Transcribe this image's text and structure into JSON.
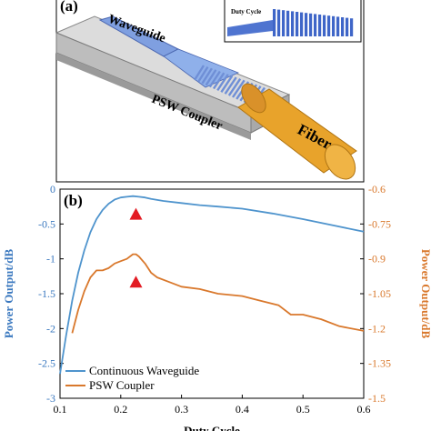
{
  "panel_a": {
    "label": "(a)",
    "waveguide_label": "Waveguide",
    "coupler_label": "PSW Coupler",
    "fiber_label": "Fiber",
    "inset_label": "Duty Cycle",
    "colors": {
      "waveguide": "#6f8fd6",
      "fiber": "#e8a32b",
      "substrate": "#d4d4d4"
    }
  },
  "panel_b": {
    "label": "(b)",
    "chart_data": {
      "type": "line",
      "xlabel": "Duty Cycle",
      "ylabel_left": "Power Output/dB",
      "ylabel_right": "Power Output/dB",
      "xlim": [
        0.1,
        0.6
      ],
      "ylim_left": [
        -3,
        0
      ],
      "ylim_right": [
        -1.5,
        -0.6
      ],
      "x_ticks": [
        "0.1",
        "0.2",
        "0.3",
        "0.4",
        "0.5",
        "0.6"
      ],
      "y_ticks_left": [
        "0",
        "-0.5",
        "-1",
        "-1.5",
        "-2",
        "-2.5",
        "-3"
      ],
      "y_ticks_right": [
        "-0.6",
        "-0.75",
        "-0.9",
        "-1.05",
        "-1.2",
        "-1.35",
        "-1.5"
      ],
      "legend_position": "bottom-left",
      "grid": false,
      "series": [
        {
          "name": "Continuous Waveguide",
          "axis": "left",
          "color": "#4f94cd",
          "x": [
            0.1,
            0.11,
            0.12,
            0.13,
            0.14,
            0.15,
            0.16,
            0.17,
            0.18,
            0.19,
            0.2,
            0.21,
            0.22,
            0.23,
            0.24,
            0.25,
            0.27,
            0.3,
            0.33,
            0.36,
            0.4,
            0.45,
            0.5,
            0.55,
            0.6
          ],
          "y": [
            -2.65,
            -2.1,
            -1.6,
            -1.2,
            -0.88,
            -0.62,
            -0.43,
            -0.3,
            -0.21,
            -0.15,
            -0.12,
            -0.11,
            -0.1,
            -0.11,
            -0.12,
            -0.14,
            -0.17,
            -0.2,
            -0.23,
            -0.25,
            -0.28,
            -0.35,
            -0.43,
            -0.52,
            -0.61
          ]
        },
        {
          "name": "PSW Coupler",
          "axis": "right",
          "color": "#d9782c",
          "x": [
            0.12,
            0.13,
            0.14,
            0.15,
            0.16,
            0.17,
            0.18,
            0.19,
            0.2,
            0.21,
            0.22,
            0.225,
            0.23,
            0.24,
            0.25,
            0.26,
            0.28,
            0.3,
            0.33,
            0.36,
            0.4,
            0.43,
            0.46,
            0.48,
            0.5,
            0.53,
            0.56,
            0.6
          ],
          "y": [
            -1.22,
            -1.12,
            -1.04,
            -0.98,
            -0.95,
            -0.95,
            -0.94,
            -0.92,
            -0.91,
            -0.9,
            -0.88,
            -0.88,
            -0.89,
            -0.92,
            -0.96,
            -0.98,
            -1.0,
            -1.02,
            -1.03,
            -1.05,
            -1.06,
            -1.08,
            -1.1,
            -1.14,
            -1.14,
            -1.16,
            -1.19,
            -1.21
          ]
        }
      ],
      "markers": [
        {
          "axis": "left",
          "x": 0.225,
          "y": -0.36,
          "color": "#e31b23"
        },
        {
          "axis": "right",
          "x": 0.225,
          "y": -1.0,
          "color": "#e31b23"
        }
      ]
    }
  }
}
